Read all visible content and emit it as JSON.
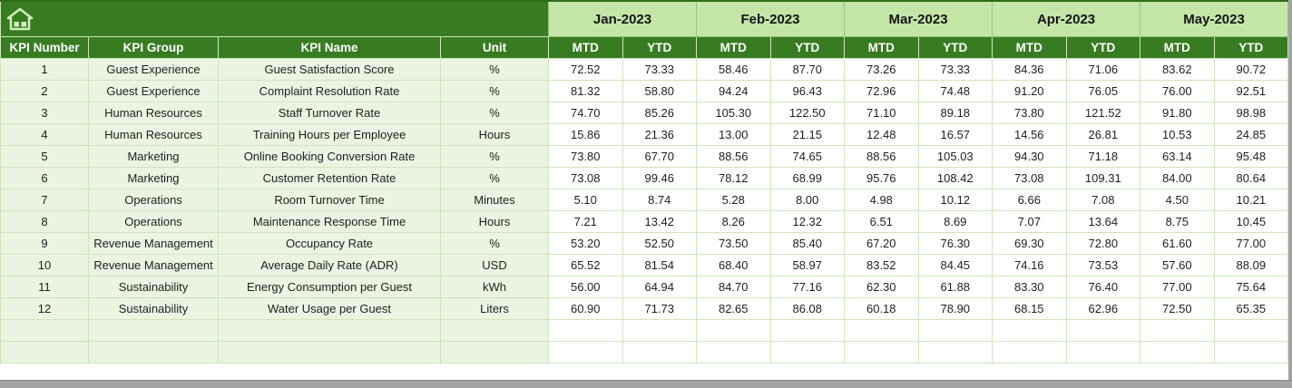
{
  "table": {
    "corner_headers": [
      "KPI Number",
      "KPI Group",
      "KPI Name",
      "Unit"
    ],
    "months": [
      "Jan-2023",
      "Feb-2023",
      "Mar-2023",
      "Apr-2023",
      "May-2023"
    ],
    "period_headers": {
      "mtd": "MTD",
      "ytd": "YTD"
    },
    "rows": [
      {
        "kpi_number": "1",
        "kpi_group": "Guest Experience",
        "kpi_name": "Guest Satisfaction Score",
        "unit": "%",
        "values": [
          "72.52",
          "73.33",
          "58.46",
          "87.70",
          "73.26",
          "73.33",
          "84.36",
          "71.06",
          "83.62",
          "90.72"
        ]
      },
      {
        "kpi_number": "2",
        "kpi_group": "Guest Experience",
        "kpi_name": "Complaint Resolution Rate",
        "unit": "%",
        "values": [
          "81.32",
          "58.80",
          "94.24",
          "96.43",
          "72.96",
          "74.48",
          "91.20",
          "76.05",
          "76.00",
          "92.51"
        ]
      },
      {
        "kpi_number": "3",
        "kpi_group": "Human Resources",
        "kpi_name": "Staff Turnover Rate",
        "unit": "%",
        "values": [
          "74.70",
          "85.26",
          "105.30",
          "122.50",
          "71.10",
          "89.18",
          "73.80",
          "121.52",
          "91.80",
          "98.98"
        ]
      },
      {
        "kpi_number": "4",
        "kpi_group": "Human Resources",
        "kpi_name": "Training Hours per Employee",
        "unit": "Hours",
        "values": [
          "15.86",
          "21.36",
          "13.00",
          "21.15",
          "12.48",
          "16.57",
          "14.56",
          "26.81",
          "10.53",
          "24.85"
        ]
      },
      {
        "kpi_number": "5",
        "kpi_group": "Marketing",
        "kpi_name": "Online Booking Conversion Rate",
        "unit": "%",
        "values": [
          "73.80",
          "67.70",
          "88.56",
          "74.65",
          "88.56",
          "105.03",
          "94.30",
          "71.18",
          "63.14",
          "95.48"
        ]
      },
      {
        "kpi_number": "6",
        "kpi_group": "Marketing",
        "kpi_name": "Customer Retention Rate",
        "unit": "%",
        "values": [
          "73.08",
          "99.46",
          "78.12",
          "68.99",
          "95.76",
          "108.42",
          "73.08",
          "109.31",
          "84.00",
          "80.64"
        ]
      },
      {
        "kpi_number": "7",
        "kpi_group": "Operations",
        "kpi_name": "Room Turnover Time",
        "unit": "Minutes",
        "values": [
          "5.10",
          "8.74",
          "5.28",
          "8.00",
          "4.98",
          "10.12",
          "6.66",
          "7.08",
          "4.50",
          "10.21"
        ]
      },
      {
        "kpi_number": "8",
        "kpi_group": "Operations",
        "kpi_name": "Maintenance Response Time",
        "unit": "Hours",
        "values": [
          "7.21",
          "13.42",
          "8.26",
          "12.32",
          "6.51",
          "8.69",
          "7.07",
          "13.64",
          "8.75",
          "10.45"
        ]
      },
      {
        "kpi_number": "9",
        "kpi_group": "Revenue Management",
        "kpi_name": "Occupancy Rate",
        "unit": "%",
        "values": [
          "53.20",
          "52.50",
          "73.50",
          "85.40",
          "67.20",
          "76.30",
          "69.30",
          "72.80",
          "61.60",
          "77.00"
        ]
      },
      {
        "kpi_number": "10",
        "kpi_group": "Revenue Management",
        "kpi_name": "Average Daily Rate (ADR)",
        "unit": "USD",
        "values": [
          "65.52",
          "81.54",
          "68.40",
          "58.97",
          "83.52",
          "84.45",
          "74.16",
          "73.53",
          "57.60",
          "88.09"
        ]
      },
      {
        "kpi_number": "11",
        "kpi_group": "Sustainability",
        "kpi_name": "Energy Consumption per Guest",
        "unit": "kWh",
        "values": [
          "56.00",
          "64.94",
          "84.70",
          "77.16",
          "62.30",
          "61.88",
          "83.30",
          "76.40",
          "77.00",
          "75.64"
        ]
      },
      {
        "kpi_number": "12",
        "kpi_group": "Sustainability",
        "kpi_name": "Water Usage per Guest",
        "unit": "Liters",
        "values": [
          "60.90",
          "71.73",
          "82.65",
          "86.08",
          "60.18",
          "78.90",
          "68.15",
          "62.96",
          "72.50",
          "65.35"
        ]
      }
    ],
    "empty_rows": 2
  },
  "icons": {
    "home": "home-icon"
  },
  "colors": {
    "header_green": "#387c21",
    "month_band_green": "#c3e6a7",
    "row_tint_green": "#eaf4e1",
    "gridline_green": "#cfe5bd",
    "window_edge_gray": "#a3a3a3",
    "icon_green": "#cfeebb"
  }
}
